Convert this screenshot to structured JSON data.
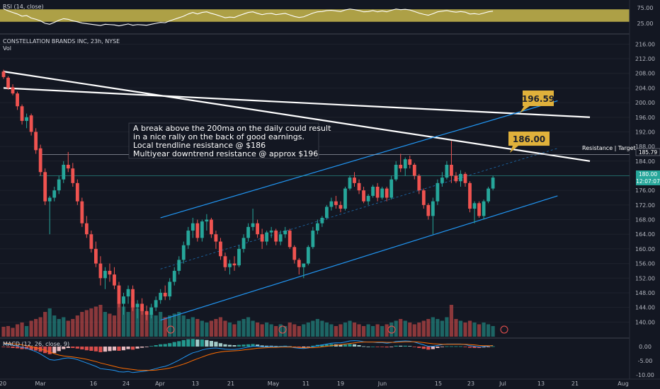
{
  "symbol_title": "CONSTELLATION BRANDS INC, 23h, NYSE",
  "volume_label": "Vol",
  "rsi_label": "RSI (14, close)",
  "macd_label": "MACD (12, 26, close, 9)",
  "annotation_lines": [
    "A break above the 200ma on the daily could result",
    "in a nice rally on the back of good earnings.",
    "Local trendline resistance @ $186",
    "Multiyear downtrend resistance @ approx $196"
  ],
  "callouts": [
    "196.59",
    "186.00"
  ],
  "resistance_label": "Resistance | Target",
  "price_badges": [
    "185.79",
    "180.00",
    "12:07:07"
  ],
  "colors": {
    "bull": "#26a69a",
    "bear": "#ef5350",
    "channel": "#2196f3",
    "callout_bg": "#e0b13b",
    "rsi_band": "#c9b84c",
    "macd_line": "#2196f3",
    "signal_line": "#ff6d00"
  },
  "chart_data": {
    "type": "candlestick",
    "title": "CONSTELLATION BRANDS INC, 23h, NYSE",
    "price_axis": {
      "ticks": [
        "216.00",
        "212.00",
        "208.00",
        "204.00",
        "200.00",
        "196.00",
        "192.00",
        "188.00",
        "184.00",
        "180.00",
        "176.00",
        "172.00",
        "168.00",
        "164.00",
        "160.00",
        "156.00",
        "152.00",
        "148.00",
        "144.00",
        "140.00"
      ],
      "range": [
        136,
        218
      ]
    },
    "rsi_axis": {
      "ticks": [
        "75.00",
        "25.00"
      ],
      "range": [
        0,
        100
      ],
      "band": [
        30,
        70
      ]
    },
    "macd_axis": {
      "ticks": [
        "0.00",
        "-5.00",
        "-10.00"
      ],
      "range": [
        -11,
        2.5
      ]
    },
    "x_ticks": [
      "20",
      "Mar",
      "16",
      "24",
      "Apr",
      "13",
      "21",
      "May",
      "11",
      "19",
      "Jun",
      "15",
      "23",
      "Jul",
      "13",
      "21",
      "Aug"
    ],
    "candles": [
      [
        208.5,
        209.0,
        206.5,
        207.0
      ],
      [
        206.8,
        207.2,
        203.5,
        204.0
      ],
      [
        204.2,
        205.0,
        202.0,
        202.5
      ],
      [
        202.5,
        203.0,
        198.0,
        199.0
      ],
      [
        199.0,
        199.5,
        194.0,
        195.0
      ],
      [
        195.0,
        197.0,
        193.0,
        196.0
      ],
      [
        196.5,
        197.0,
        191.0,
        192.0
      ],
      [
        192.0,
        193.0,
        186.0,
        187.0
      ],
      [
        187.5,
        188.5,
        180.0,
        181.0
      ],
      [
        181.0,
        182.0,
        172.0,
        173.0
      ],
      [
        173.0,
        174.5,
        164.0,
        174.0
      ],
      [
        174.0,
        177.0,
        173.0,
        176.0
      ],
      [
        176.0,
        180.0,
        175.0,
        179.0
      ],
      [
        179.0,
        184.0,
        178.0,
        183.0
      ],
      [
        183.0,
        186.5,
        181.0,
        182.0
      ],
      [
        182.0,
        183.5,
        177.0,
        178.0
      ],
      [
        178.0,
        179.0,
        172.0,
        173.0
      ],
      [
        173.0,
        174.0,
        166.0,
        167.0
      ],
      [
        167.0,
        169.0,
        163.0,
        164.0
      ],
      [
        164.0,
        165.0,
        159.0,
        160.0
      ],
      [
        160.0,
        162.0,
        155.0,
        156.0
      ],
      [
        156.0,
        158.0,
        150.0,
        152.0
      ],
      [
        152.0,
        155.0,
        149.0,
        154.0
      ],
      [
        154.0,
        156.0,
        151.0,
        153.0
      ],
      [
        153.0,
        155.0,
        149.0,
        150.0
      ],
      [
        150.0,
        151.0,
        144.0,
        145.0
      ],
      [
        145.0,
        148.0,
        142.0,
        147.0
      ],
      [
        147.0,
        150.0,
        145.0,
        149.0
      ],
      [
        149.0,
        150.0,
        143.0,
        144.0
      ],
      [
        144.0,
        146.0,
        141.0,
        145.0
      ],
      [
        145.0,
        146.5,
        142.0,
        143.0
      ],
      [
        143.0,
        144.5,
        140.5,
        142.0
      ],
      [
        142.0,
        145.0,
        141.0,
        144.0
      ],
      [
        144.0,
        147.0,
        143.0,
        146.0
      ],
      [
        146.0,
        149.0,
        145.0,
        148.0
      ],
      [
        148.0,
        150.0,
        146.0,
        147.0
      ],
      [
        147.0,
        152.0,
        146.0,
        151.0
      ],
      [
        151.0,
        155.0,
        150.0,
        154.0
      ],
      [
        154.0,
        158.0,
        153.0,
        157.0
      ],
      [
        157.0,
        162.0,
        156.0,
        161.0
      ],
      [
        161.0,
        166.0,
        160.0,
        165.0
      ],
      [
        165.0,
        168.5,
        163.0,
        167.0
      ],
      [
        167.0,
        168.0,
        162.0,
        163.0
      ],
      [
        163.0,
        168.0,
        162.0,
        167.5
      ],
      [
        167.5,
        169.5,
        165.0,
        168.0
      ],
      [
        168.0,
        168.5,
        163.0,
        164.0
      ],
      [
        164.0,
        165.0,
        160.0,
        162.0
      ],
      [
        162.0,
        163.0,
        157.0,
        158.0
      ],
      [
        158.0,
        159.0,
        154.0,
        155.0
      ],
      [
        155.0,
        157.0,
        153.0,
        156.0
      ],
      [
        156.0,
        158.0,
        154.0,
        155.5
      ],
      [
        155.5,
        161.0,
        155.0,
        160.0
      ],
      [
        160.0,
        164.0,
        159.0,
        163.0
      ],
      [
        163.0,
        167.0,
        162.0,
        166.0
      ],
      [
        166.0,
        171.0,
        165.0,
        167.0
      ],
      [
        167.0,
        168.0,
        163.0,
        164.0
      ],
      [
        164.0,
        165.5,
        160.0,
        162.0
      ],
      [
        162.0,
        165.0,
        161.0,
        164.5
      ],
      [
        164.5,
        166.0,
        163.0,
        165.0
      ],
      [
        165.0,
        165.5,
        161.0,
        162.0
      ],
      [
        162.0,
        165.0,
        161.0,
        164.0
      ],
      [
        164.0,
        166.0,
        163.0,
        165.0
      ],
      [
        165.0,
        165.5,
        160.0,
        160.5
      ],
      [
        160.5,
        161.0,
        156.0,
        157.0
      ],
      [
        157.0,
        157.5,
        153.0,
        155.0
      ],
      [
        155.0,
        156.0,
        152.0,
        156.0
      ],
      [
        156.0,
        161.0,
        155.5,
        160.5
      ],
      [
        160.5,
        166.0,
        160.0,
        165.0
      ],
      [
        165.0,
        168.0,
        164.0,
        167.0
      ],
      [
        167.0,
        169.0,
        166.0,
        168.5
      ],
      [
        168.5,
        172.0,
        168.0,
        171.5
      ],
      [
        171.5,
        174.0,
        170.5,
        173.0
      ],
      [
        173.0,
        174.5,
        171.0,
        172.0
      ],
      [
        172.0,
        173.0,
        170.0,
        171.0
      ],
      [
        171.0,
        177.0,
        170.5,
        176.5
      ],
      [
        176.5,
        180.0,
        176.0,
        179.5
      ],
      [
        179.5,
        181.0,
        177.0,
        178.0
      ],
      [
        178.0,
        179.0,
        175.0,
        176.0
      ],
      [
        176.0,
        177.0,
        172.5,
        173.0
      ],
      [
        173.0,
        175.0,
        172.0,
        174.5
      ],
      [
        174.5,
        177.5,
        174.0,
        177.0
      ],
      [
        177.0,
        178.0,
        173.0,
        174.0
      ],
      [
        174.0,
        177.0,
        173.5,
        176.5
      ],
      [
        176.5,
        177.0,
        173.0,
        174.0
      ],
      [
        174.0,
        180.0,
        173.5,
        179.0
      ],
      [
        179.0,
        184.0,
        178.5,
        183.0
      ],
      [
        183.0,
        186.0,
        181.0,
        182.0
      ],
      [
        182.0,
        185.0,
        180.0,
        184.5
      ],
      [
        184.5,
        185.5,
        182.0,
        183.0
      ],
      [
        183.0,
        183.5,
        179.0,
        180.0
      ],
      [
        180.0,
        180.5,
        175.0,
        176.0
      ],
      [
        176.0,
        176.5,
        171.0,
        172.0
      ],
      [
        172.0,
        172.5,
        168.0,
        169.0
      ],
      [
        169.0,
        174.0,
        164.0,
        173.0
      ],
      [
        173.0,
        179.0,
        172.0,
        178.0
      ],
      [
        178.0,
        181.0,
        177.0,
        179.5
      ],
      [
        179.5,
        184.0,
        179.0,
        183.0
      ],
      [
        183.0,
        189.5,
        178.0,
        180.0
      ],
      [
        180.0,
        181.0,
        178.0,
        178.5
      ],
      [
        178.5,
        181.5,
        177.0,
        180.5
      ],
      [
        180.5,
        181.0,
        177.0,
        178.0
      ],
      [
        178.0,
        178.5,
        170.0,
        171.0
      ],
      [
        171.0,
        173.0,
        167.0,
        172.5
      ],
      [
        172.5,
        173.0,
        168.5,
        169.0
      ],
      [
        169.0,
        173.5,
        168.0,
        173.0
      ],
      [
        173.0,
        177.0,
        172.5,
        176.5
      ],
      [
        176.5,
        180.0,
        176.0,
        179.5
      ]
    ],
    "volume": [
      0.28,
      0.3,
      0.25,
      0.35,
      0.4,
      0.3,
      0.45,
      0.5,
      0.55,
      0.7,
      0.8,
      0.6,
      0.5,
      0.55,
      0.45,
      0.5,
      0.6,
      0.7,
      0.75,
      0.8,
      0.85,
      0.9,
      0.7,
      0.65,
      0.6,
      0.95,
      0.85,
      0.7,
      1.0,
      0.8,
      0.75,
      0.7,
      0.65,
      0.6,
      0.7,
      0.55,
      0.6,
      0.65,
      0.7,
      0.6,
      0.5,
      0.55,
      0.5,
      0.45,
      0.4,
      0.45,
      0.5,
      0.55,
      0.45,
      0.4,
      0.35,
      0.45,
      0.5,
      0.55,
      0.45,
      0.4,
      0.35,
      0.4,
      0.35,
      0.3,
      0.35,
      0.3,
      0.4,
      0.35,
      0.3,
      0.35,
      0.4,
      0.45,
      0.5,
      0.45,
      0.4,
      0.35,
      0.3,
      0.35,
      0.4,
      0.45,
      0.4,
      0.35,
      0.3,
      0.35,
      0.3,
      0.35,
      0.3,
      0.35,
      0.4,
      0.45,
      0.5,
      0.45,
      0.4,
      0.35,
      0.4,
      0.45,
      0.5,
      0.55,
      0.5,
      0.45,
      0.55,
      0.9,
      0.5,
      0.45,
      0.4,
      0.45,
      0.4,
      0.35,
      0.4,
      0.35,
      0.3
    ],
    "rsi": [
      72,
      65,
      60,
      55,
      48,
      50,
      42,
      38,
      33,
      25,
      22,
      28,
      35,
      40,
      38,
      33,
      30,
      26,
      24,
      22,
      20,
      18,
      22,
      21,
      20,
      17,
      20,
      23,
      19,
      21,
      20,
      19,
      22,
      25,
      28,
      27,
      33,
      38,
      43,
      48,
      55,
      60,
      55,
      60,
      62,
      57,
      53,
      48,
      43,
      45,
      44,
      50,
      55,
      60,
      62,
      57,
      53,
      56,
      57,
      53,
      55,
      57,
      52,
      47,
      44,
      46,
      52,
      58,
      62,
      63,
      66,
      67,
      65,
      63,
      68,
      71,
      69,
      66,
      62,
      63,
      66,
      62,
      65,
      62,
      67,
      71,
      69,
      70,
      68,
      63,
      58,
      54,
      51,
      56,
      62,
      64,
      66,
      63,
      61,
      63,
      61,
      55,
      56,
      54,
      58,
      62,
      64
    ],
    "macd": [
      1.0,
      0.8,
      0.5,
      0.2,
      -0.3,
      -0.6,
      -1.2,
      -1.8,
      -2.6,
      -3.6,
      -4.6,
      -4.8,
      -4.6,
      -4.2,
      -4.0,
      -4.2,
      -4.6,
      -5.2,
      -5.8,
      -6.4,
      -7.0,
      -7.8,
      -8.0,
      -8.2,
      -8.4,
      -8.9,
      -9.0,
      -8.8,
      -9.2,
      -9.0,
      -8.8,
      -8.6,
      -8.2,
      -7.8,
      -7.3,
      -7.0,
      -6.4,
      -5.6,
      -4.8,
      -3.9,
      -3.0,
      -2.2,
      -1.8,
      -1.2,
      -0.8,
      -0.6,
      -0.5,
      -0.7,
      -0.9,
      -1.0,
      -1.0,
      -0.8,
      -0.5,
      -0.2,
      0.1,
      0.1,
      -0.1,
      -0.1,
      0.0,
      -0.1,
      0.0,
      0.1,
      -0.1,
      -0.4,
      -0.6,
      -0.7,
      -0.5,
      -0.1,
      0.3,
      0.6,
      0.9,
      1.2,
      1.3,
      1.3,
      1.6,
      2.0,
      2.1,
      2.0,
      1.7,
      1.6,
      1.6,
      1.4,
      1.4,
      1.2,
      1.4,
      1.8,
      1.9,
      2.0,
      1.9,
      1.6,
      1.1,
      0.6,
      0.1,
      0.1,
      0.4,
      0.7,
      0.9,
      0.9,
      0.9,
      0.9,
      0.7,
      0.3,
      0.1,
      -0.1,
      0.0,
      0.2,
      0.4
    ],
    "signal": [
      1.2,
      1.1,
      1.0,
      0.8,
      0.6,
      0.3,
      0.0,
      -0.4,
      -0.8,
      -1.3,
      -1.9,
      -2.5,
      -3.0,
      -3.3,
      -3.5,
      -3.7,
      -3.9,
      -4.2,
      -4.5,
      -4.9,
      -5.3,
      -5.8,
      -6.2,
      -6.6,
      -7.0,
      -7.4,
      -7.7,
      -7.9,
      -8.1,
      -8.3,
      -8.4,
      -8.4,
      -8.4,
      -8.3,
      -8.1,
      -7.9,
      -7.6,
      -7.2,
      -6.7,
      -6.2,
      -5.6,
      -4.9,
      -4.3,
      -3.7,
      -3.1,
      -2.6,
      -2.2,
      -1.9,
      -1.7,
      -1.6,
      -1.5,
      -1.4,
      -1.2,
      -1.0,
      -0.8,
      -0.6,
      -0.5,
      -0.4,
      -0.3,
      -0.3,
      -0.2,
      -0.2,
      -0.2,
      -0.2,
      -0.3,
      -0.4,
      -0.4,
      -0.4,
      -0.3,
      -0.1,
      0.1,
      0.3,
      0.5,
      0.7,
      0.9,
      1.1,
      1.3,
      1.5,
      1.6,
      1.6,
      1.6,
      1.6,
      1.6,
      1.5,
      1.5,
      1.5,
      1.6,
      1.7,
      1.7,
      1.7,
      1.6,
      1.4,
      1.2,
      1.0,
      0.9,
      0.8,
      0.8,
      0.8,
      0.8,
      0.8,
      0.8,
      0.7,
      0.6,
      0.4,
      0.3,
      0.3,
      0.3
    ],
    "trendlines": [
      {
        "name": "multiyear-downtrend",
        "from": [
          0,
          204.0
        ],
        "to": [
          127,
          196.0
        ]
      },
      {
        "name": "local-downtrend",
        "from": [
          0,
          208.5
        ],
        "to": [
          127,
          184.0
        ]
      },
      {
        "name": "channel-upper",
        "from": [
          34,
          168.5
        ],
        "to": [
          120,
          200.5
        ]
      },
      {
        "name": "channel-lower",
        "from": [
          34,
          140.5
        ],
        "to": [
          120,
          174.5
        ]
      },
      {
        "name": "channel-mid",
        "from": [
          34,
          154.5
        ],
        "to": [
          120,
          187.5
        ]
      }
    ],
    "levels": [
      185.79,
      180.0
    ]
  }
}
